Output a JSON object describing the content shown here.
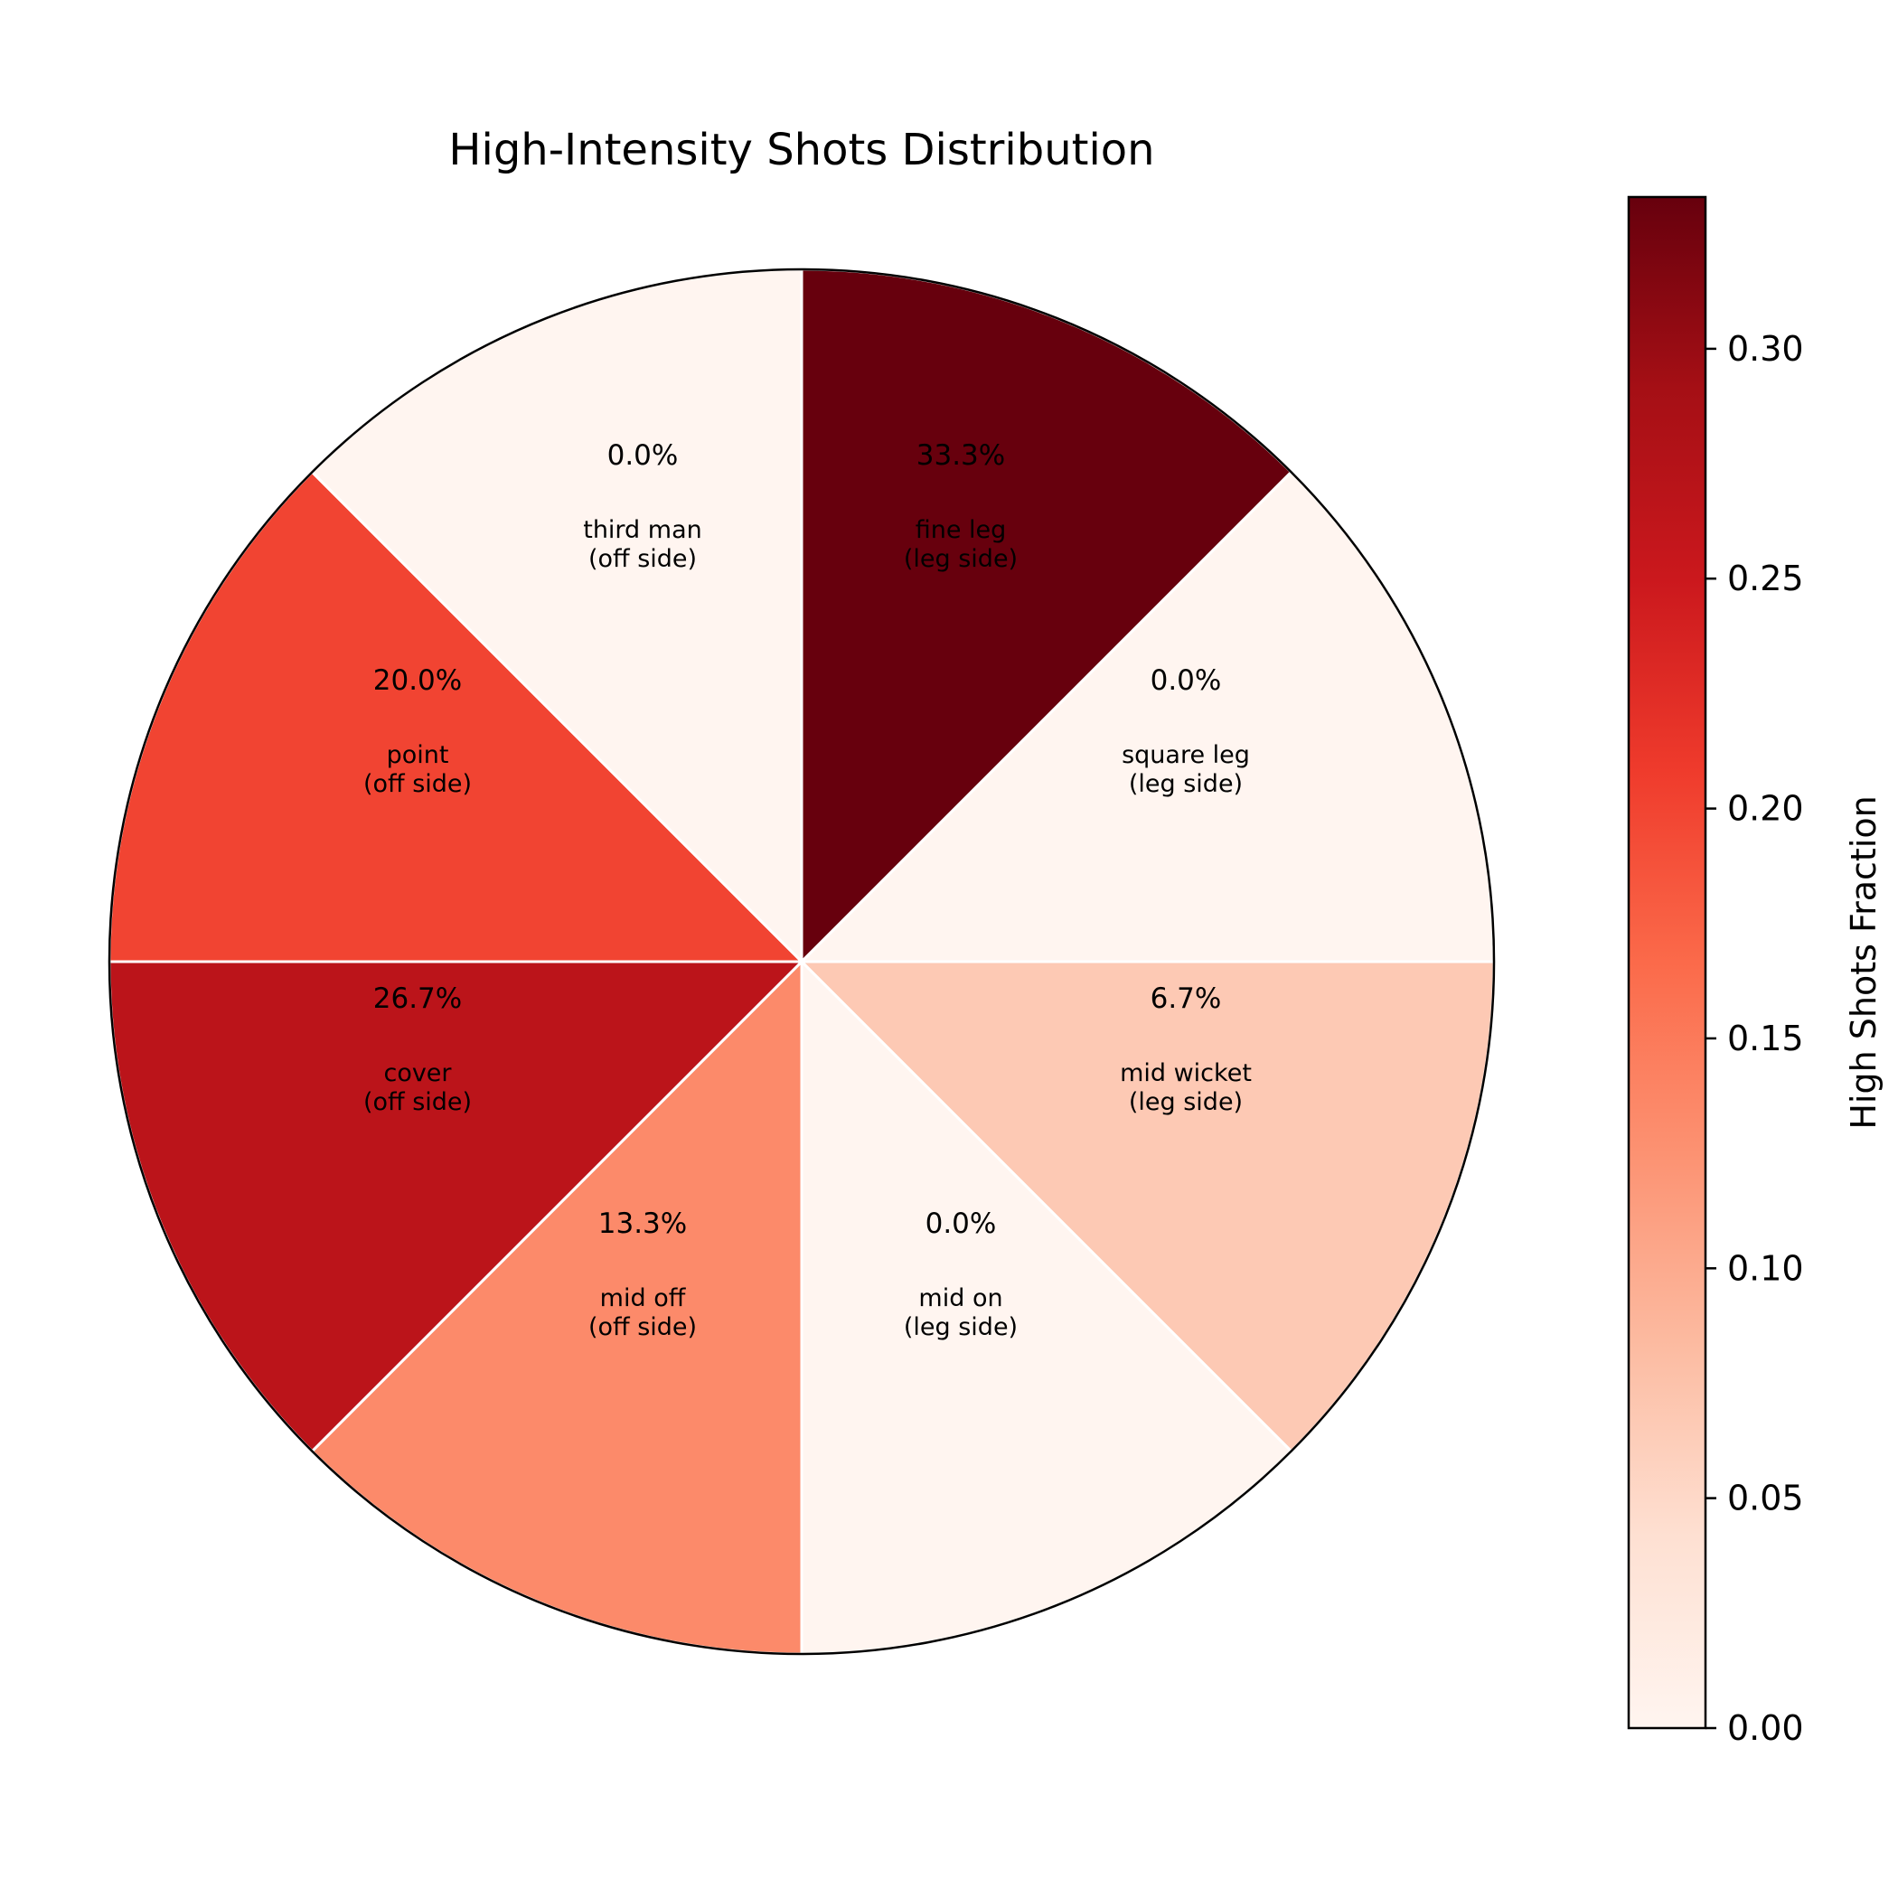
{
  "chart_data": {
    "type": "pie",
    "title": "High-Intensity Shots Distribution",
    "slices": [
      {
        "name": "fine leg",
        "side": "(leg side)",
        "value": 0.333,
        "pct_label": "33.3%"
      },
      {
        "name": "square leg",
        "side": "(leg side)",
        "value": 0.0,
        "pct_label": "0.0%"
      },
      {
        "name": "mid wicket",
        "side": "(leg side)",
        "value": 0.067,
        "pct_label": "6.7%"
      },
      {
        "name": "mid on",
        "side": "(leg side)",
        "value": 0.0,
        "pct_label": "0.0%"
      },
      {
        "name": "mid off",
        "side": "(off side)",
        "value": 0.133,
        "pct_label": "13.3%"
      },
      {
        "name": "cover",
        "side": "(off side)",
        "value": 0.267,
        "pct_label": "26.7%"
      },
      {
        "name": "point",
        "side": "(off side)",
        "value": 0.2,
        "pct_label": "20.0%"
      },
      {
        "name": "third man",
        "side": "(off side)",
        "value": 0.0,
        "pct_label": "0.0%"
      }
    ],
    "slice_arrangement": "eight equal 45-degree sectors, clockwise from 12 o'clock, colored by value",
    "colormap": "Reds",
    "colorbar": {
      "label": "High Shots Fraction",
      "range": [
        0,
        0.333
      ],
      "ticks": [
        0.0,
        0.05,
        0.1,
        0.15,
        0.2,
        0.25,
        0.3
      ],
      "tick_labels": [
        "0.00",
        "0.05",
        "0.10",
        "0.15",
        "0.20",
        "0.25",
        "0.30"
      ],
      "placement": "right"
    }
  }
}
